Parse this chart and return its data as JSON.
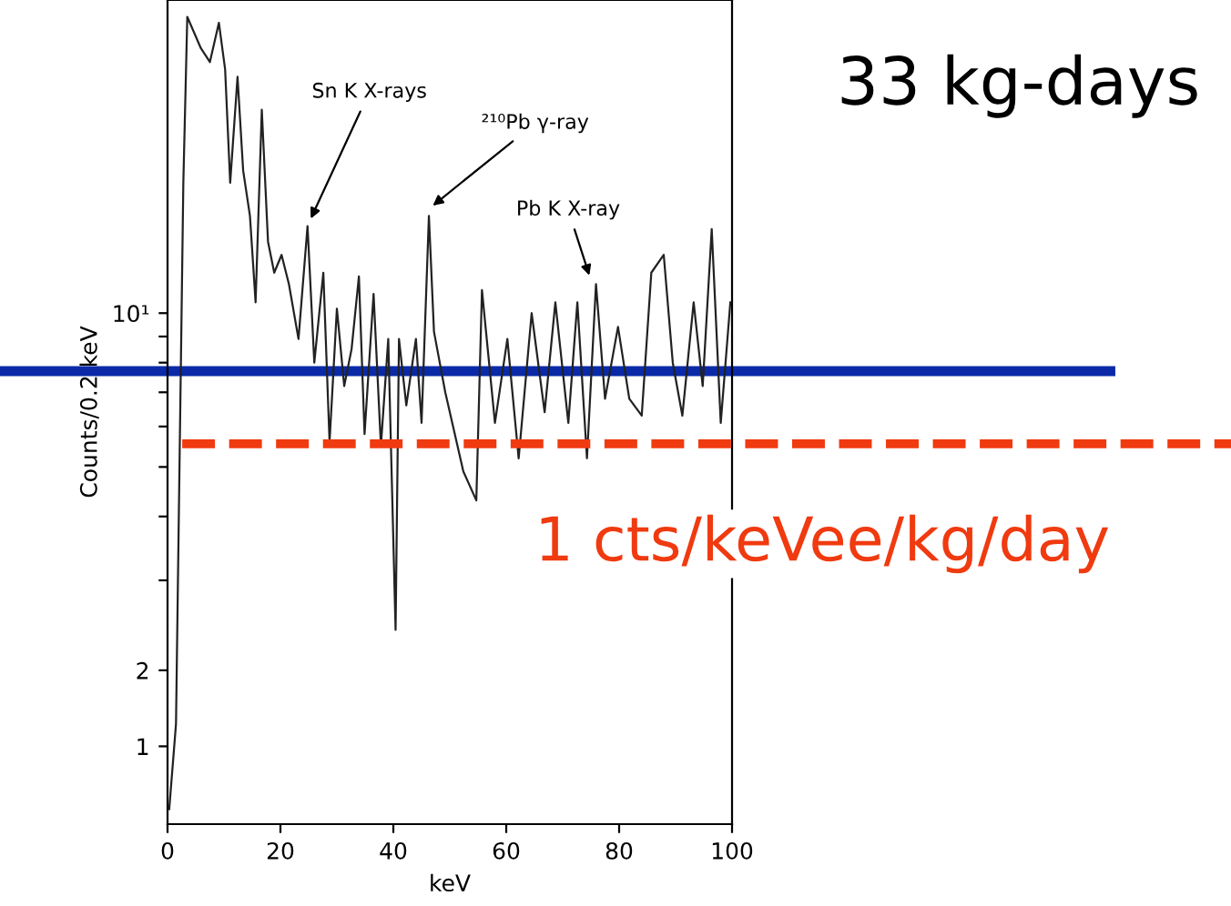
{
  "chart_data": {
    "type": "line",
    "xlabel": "keV",
    "ylabel": "Counts/0.2 keV",
    "log": "y",
    "xlim": [
      0,
      100
    ],
    "xticks": [
      0,
      20,
      40,
      60,
      80,
      100
    ],
    "ylim": [
      1,
      41
    ],
    "yticks": [
      {
        "value": 1.42,
        "label": "1"
      },
      {
        "value": 2,
        "label": "2"
      },
      {
        "value": 3,
        "label": null
      },
      {
        "value": 4,
        "label": null
      },
      {
        "value": 5,
        "label": null
      },
      {
        "value": 6,
        "label": null
      },
      {
        "value": 7,
        "label": null
      },
      {
        "value": 8,
        "label": null
      },
      {
        "value": 9,
        "label": null
      },
      {
        "value": 10,
        "label": "10¹"
      }
    ],
    "grid": false,
    "legend": false,
    "marker": "none",
    "line_style": "solid",
    "series": [
      {
        "color": "#222222",
        "x": [
          0.3,
          1.5,
          2.8,
          3.5,
          5.9,
          7.5,
          9.1,
          10.2,
          11.1,
          12.4,
          13.4,
          14.6,
          15.6,
          16.7,
          17.8,
          18.9,
          20.2,
          21.5,
          23.2,
          24.8,
          26,
          27.6,
          28.7,
          30,
          31.3,
          32.6,
          33.9,
          34.9,
          36.5,
          37.8,
          39.1,
          40.4,
          41,
          42.3,
          44,
          45,
          46.3,
          47.2,
          49.2,
          52.4,
          54.7,
          55.7,
          58,
          60.2,
          62.2,
          64.5,
          66.8,
          68.7,
          71,
          72.6,
          74.3,
          75.9,
          77.5,
          79.8,
          81.8,
          84,
          85.7,
          87.9,
          89.5,
          91.2,
          93.2,
          94.8,
          96.4,
          98,
          99.7
        ],
        "values": [
          1.07,
          1.57,
          18,
          38,
          33,
          31,
          37,
          30,
          18,
          29,
          19,
          15.5,
          10.5,
          25,
          13.8,
          12,
          13,
          11.4,
          8.9,
          14.8,
          8.0,
          12,
          5.6,
          10.2,
          7.2,
          8.5,
          11.8,
          5.8,
          10.9,
          5.5,
          8.9,
          2.4,
          8.9,
          6.6,
          8.9,
          6.1,
          15.5,
          9.2,
          7.0,
          4.9,
          4.3,
          11.1,
          6.1,
          8.9,
          5.2,
          10,
          6.4,
          10.5,
          6.1,
          10.5,
          5.2,
          11.4,
          6.8,
          9.4,
          6.8,
          6.3,
          12,
          13,
          8.0,
          6.3,
          10.5,
          7.2,
          14.6,
          6.1,
          10.5
        ]
      }
    ],
    "ref_lines": [
      {
        "axis": "y",
        "value": 7.7,
        "color": "#0a2aa8",
        "line_style": "solid"
      },
      {
        "axis": "y",
        "value": 5.55,
        "color": "#f03a10",
        "line_style": "dashed",
        "label": "1 cts/keVee/kg/day"
      }
    ],
    "annotations": [
      {
        "text": "Sn K X-rays",
        "x": 25,
        "y": 15
      },
      {
        "text": "²¹⁰Pb γ-ray",
        "x": 46.3,
        "y": 16
      },
      {
        "text": "Pb K X-ray",
        "x": 75,
        "y": 11.6
      },
      "33 kg-days"
    ]
  }
}
